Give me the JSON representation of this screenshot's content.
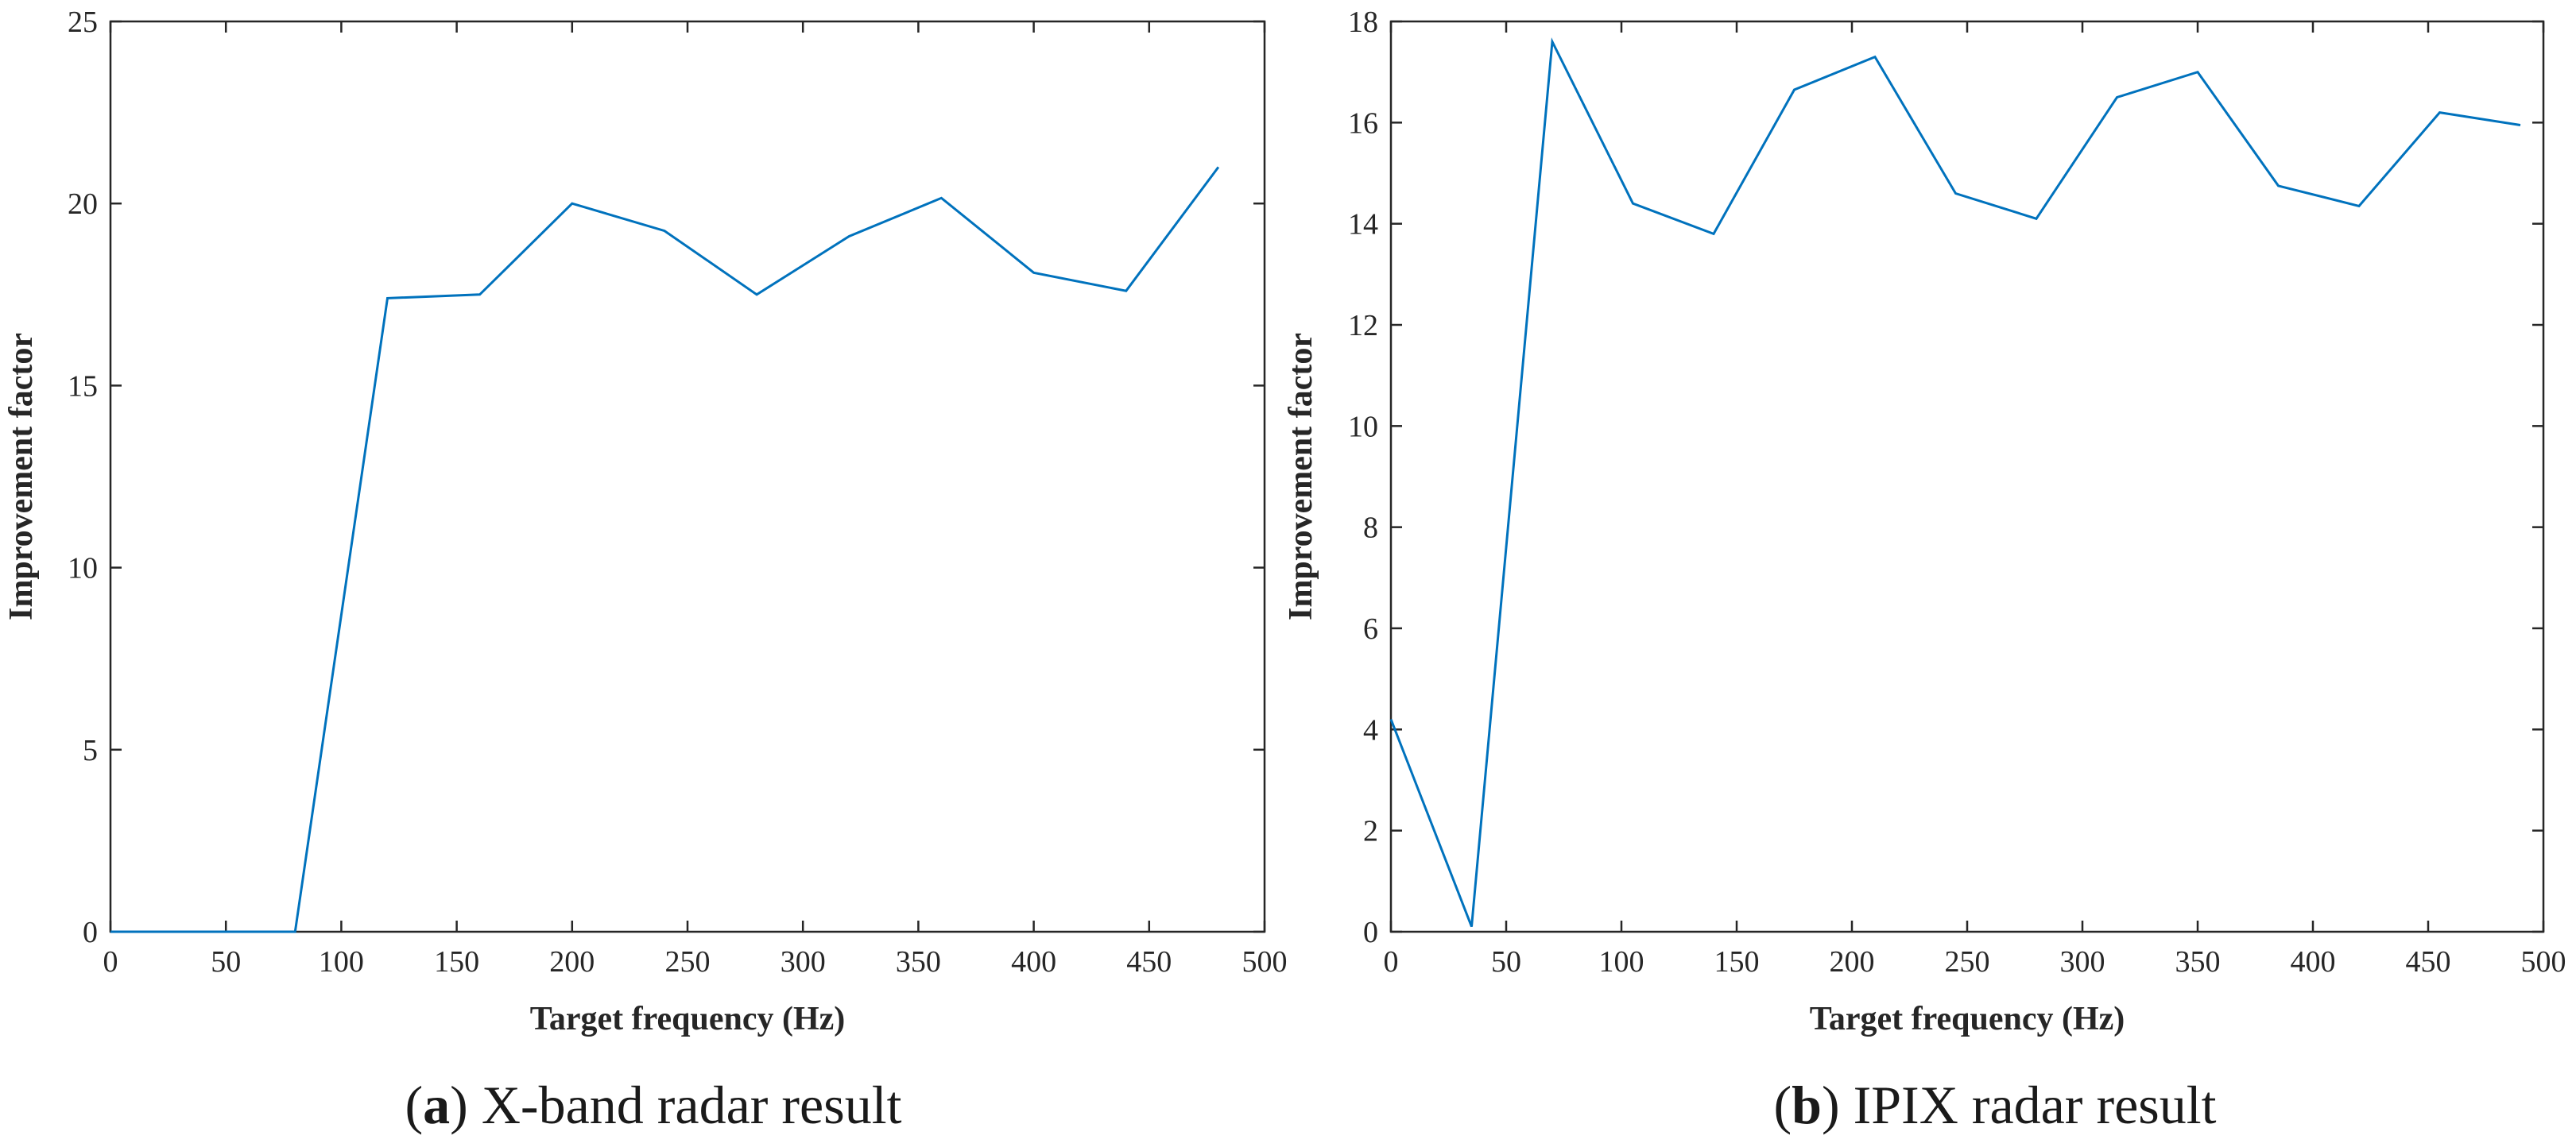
{
  "chart_data": [
    {
      "type": "line",
      "caption_letter": "a",
      "caption_text": "X-band radar result",
      "title": "",
      "xlabel": "Target frequency (Hz)",
      "ylabel": "Improvement factor",
      "xlim": [
        0,
        500
      ],
      "ylim": [
        0,
        25
      ],
      "xticks": [
        0,
        50,
        100,
        150,
        200,
        250,
        300,
        350,
        400,
        450,
        500
      ],
      "yticks": [
        0,
        5,
        10,
        15,
        20,
        25
      ],
      "grid": false,
      "line_color": "#0072BD",
      "series": [
        {
          "name": "Improvement factor",
          "x": [
            0,
            40,
            80,
            120,
            160,
            200,
            240,
            280,
            320,
            360,
            400,
            440,
            480
          ],
          "y": [
            0,
            0,
            0,
            17.4,
            17.5,
            20.0,
            19.25,
            17.5,
            19.1,
            20.15,
            18.1,
            17.6,
            21.0
          ]
        }
      ]
    },
    {
      "type": "line",
      "caption_letter": "b",
      "caption_text": "IPIX radar result",
      "title": "",
      "xlabel": "Target frequency (Hz)",
      "ylabel": "Improvement factor",
      "xlim": [
        0,
        500
      ],
      "ylim": [
        0,
        18
      ],
      "xticks": [
        0,
        50,
        100,
        150,
        200,
        250,
        300,
        350,
        400,
        450,
        500
      ],
      "yticks": [
        0,
        2,
        4,
        6,
        8,
        10,
        12,
        14,
        16,
        18
      ],
      "grid": false,
      "line_color": "#0072BD",
      "series": [
        {
          "name": "Improvement factor",
          "x": [
            0,
            35,
            70,
            105,
            140,
            175,
            210,
            245,
            280,
            315,
            350,
            385,
            420,
            455,
            490
          ],
          "y": [
            4.2,
            0.1,
            17.6,
            14.4,
            13.8,
            16.65,
            17.3,
            14.6,
            14.1,
            16.5,
            17.0,
            14.75,
            14.35,
            16.2,
            15.95
          ]
        }
      ]
    }
  ]
}
